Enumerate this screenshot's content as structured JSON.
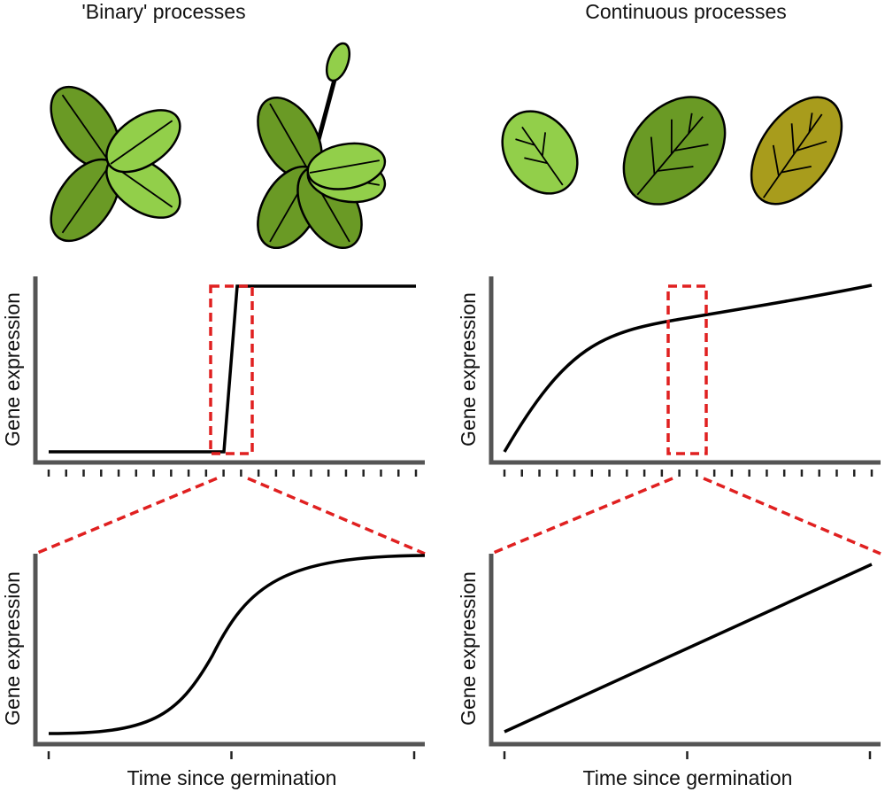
{
  "left": {
    "title": "'Binary' processes",
    "top_panel": {
      "y_label": "Gene expression"
    },
    "bottom_panel": {
      "y_label": "Gene expression",
      "x_label": "Time since germination"
    }
  },
  "right": {
    "title": "Continuous processes",
    "top_panel": {
      "y_label": "Gene expression"
    },
    "bottom_panel": {
      "y_label": "Gene expression",
      "x_label": "Time since germination"
    }
  }
}
